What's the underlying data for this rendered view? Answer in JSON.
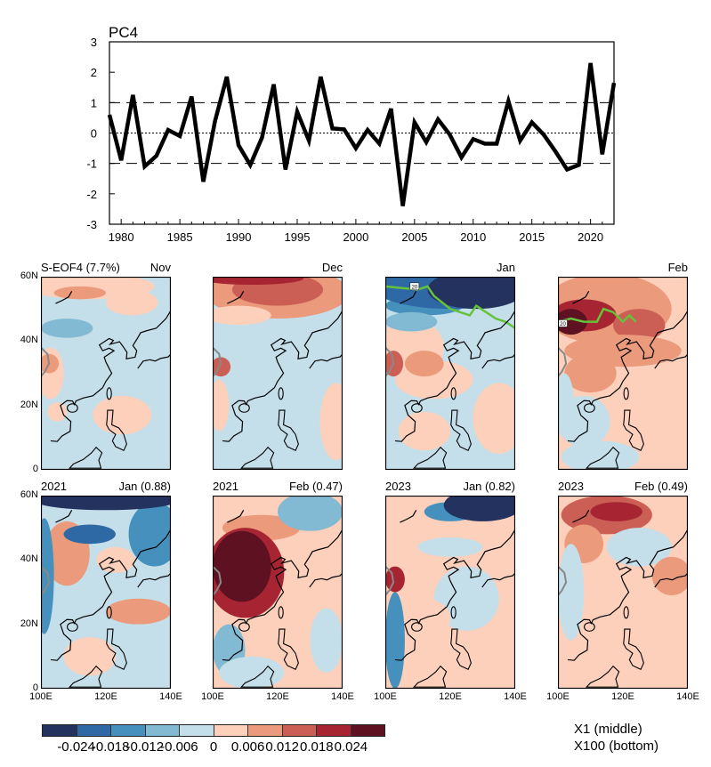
{
  "chart_data": [
    {
      "type": "line",
      "title": "PC4",
      "x": [
        1979,
        1980,
        1981,
        1982,
        1983,
        1984,
        1985,
        1986,
        1987,
        1988,
        1989,
        1990,
        1991,
        1992,
        1993,
        1994,
        1995,
        1996,
        1997,
        1998,
        1999,
        2000,
        2001,
        2002,
        2003,
        2004,
        2005,
        2006,
        2007,
        2008,
        2009,
        2010,
        2011,
        2012,
        2013,
        2014,
        2015,
        2016,
        2017,
        2018,
        2019,
        2020,
        2021,
        2022
      ],
      "values": [
        0.6,
        -0.9,
        1.25,
        -1.1,
        -0.75,
        0.1,
        -0.1,
        1.2,
        -1.6,
        0.4,
        1.85,
        -0.4,
        -1.05,
        -0.15,
        1.6,
        -1.2,
        0.7,
        -0.25,
        1.85,
        0.15,
        0.12,
        -0.5,
        0.1,
        -0.35,
        0.8,
        -2.4,
        0.35,
        -0.3,
        0.45,
        -0.05,
        -0.8,
        -0.2,
        -0.35,
        -0.35,
        1.05,
        -0.25,
        0.35,
        -0.05,
        -0.6,
        -1.2,
        -1.05,
        2.3,
        -0.7,
        1.65
      ],
      "xlim": [
        1979,
        2022
      ],
      "ylim": [
        -3,
        3
      ],
      "xticks": [
        "1980",
        "1985",
        "1990",
        "1995",
        "2000",
        "2005",
        "2010",
        "2015",
        "2020"
      ],
      "yticks": [
        "3",
        "2",
        "1",
        "0",
        "-1",
        "-2",
        "-3"
      ],
      "reference_lines": {
        "dashed": [
          1,
          -1
        ],
        "dotted": [
          0
        ]
      },
      "line_color": "#000000"
    },
    {
      "type": "heatmap",
      "description_panels": [
        {
          "left": "S-EOF4 (7.7%)",
          "right": "Nov"
        },
        {
          "left": "",
          "right": "Dec"
        },
        {
          "left": "",
          "right": "Jan",
          "contour_label": "20"
        },
        {
          "left": "",
          "right": "Feb",
          "contour_label": "20"
        },
        {
          "left": "2021",
          "right": "Jan (0.88)"
        },
        {
          "left": "2021",
          "right": "Feb (0.47)"
        },
        {
          "left": "2023",
          "right": "Jan (0.82)"
        },
        {
          "left": "2023",
          "right": "Feb (0.49)"
        }
      ],
      "lat_ticks": [
        "60N",
        "40N",
        "20N",
        "0"
      ],
      "lon_ticks": [
        "100E",
        "120E",
        "140E"
      ],
      "contour_color": "#66c23a",
      "colorbar": {
        "labels": [
          "-0.024",
          "-0.018",
          "-0.012",
          "-0.006",
          "0",
          "0.006",
          "0.012",
          "0.018",
          "0.024"
        ],
        "colors": [
          "#24325f",
          "#2e69a6",
          "#4590bd",
          "#83bad3",
          "#c4dfea",
          "#fcd0bb",
          "#eb9a7c",
          "#cc5f55",
          "#a72532",
          "#5e1221"
        ],
        "note1": "X1 (middle)",
        "note2": "X100 (bottom)"
      }
    }
  ]
}
